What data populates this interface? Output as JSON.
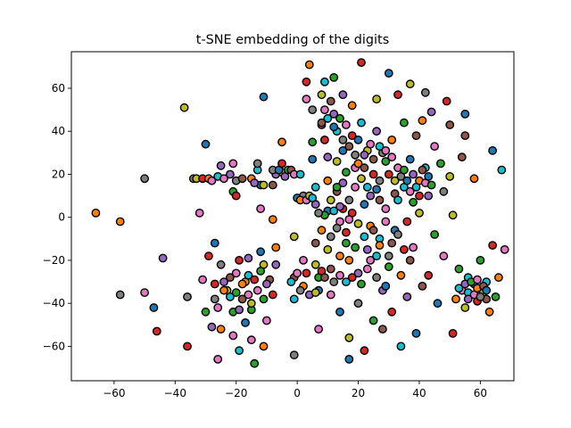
{
  "chart_data": {
    "type": "scatter",
    "title": "t-SNE embedding of the digits",
    "xlabel": "",
    "ylabel": "",
    "xlim": [
      -74,
      71
    ],
    "ylim": [
      -76,
      77
    ],
    "xticks": [
      -60,
      -40,
      -20,
      0,
      20,
      40,
      60
    ],
    "yticks": [
      -60,
      -40,
      -20,
      0,
      20,
      40,
      60
    ],
    "xtick_labels": [
      "−60",
      "−40",
      "−20",
      "0",
      "20",
      "40",
      "60"
    ],
    "ytick_labels": [
      "−60",
      "−40",
      "−20",
      "0",
      "20",
      "40",
      "60"
    ],
    "grid": false,
    "legend": "none",
    "marker_edge_color": "#000000",
    "palette": [
      "#1f77b4",
      "#ff7f0e",
      "#2ca02c",
      "#d62728",
      "#9467bd",
      "#8c564b",
      "#e377c2",
      "#7f7f7f",
      "#bcbd22",
      "#17becf"
    ],
    "points": [
      [
        -66,
        2,
        1
      ],
      [
        -58,
        -2,
        1
      ],
      [
        -58,
        -36,
        7
      ],
      [
        -50,
        18,
        7
      ],
      [
        -50,
        -35,
        6
      ],
      [
        -47,
        -42,
        0
      ],
      [
        -46,
        -53,
        3
      ],
      [
        -44,
        -19,
        4
      ],
      [
        -37,
        51,
        8
      ],
      [
        -36,
        -60,
        3
      ],
      [
        -36,
        -37,
        7
      ],
      [
        -34,
        18,
        7
      ],
      [
        -33,
        18,
        8
      ],
      [
        -32,
        2,
        6
      ],
      [
        -31,
        -29,
        6
      ],
      [
        -30,
        -44,
        2
      ],
      [
        -29,
        -18,
        3
      ],
      [
        -28,
        -51,
        4
      ],
      [
        -30,
        34,
        0
      ],
      [
        -31,
        18,
        3
      ],
      [
        -29,
        18,
        1
      ],
      [
        -28,
        17,
        6
      ],
      [
        -27,
        -12,
        0
      ],
      [
        -27,
        -31,
        3
      ],
      [
        -26,
        -42,
        6
      ],
      [
        -26,
        -66,
        6
      ],
      [
        -25,
        -52,
        1
      ],
      [
        -25,
        -22,
        7
      ],
      [
        -24,
        -30,
        4
      ],
      [
        -23,
        -34,
        8
      ],
      [
        -22,
        -37,
        9
      ],
      [
        -21,
        -44,
        2
      ],
      [
        -22,
        20,
        4
      ],
      [
        -21,
        25,
        6
      ],
      [
        -20,
        17,
        7
      ],
      [
        -21,
        12,
        2
      ],
      [
        -20,
        10,
        3
      ],
      [
        -20,
        -26,
        6
      ],
      [
        -19,
        -20,
        3
      ],
      [
        -19,
        -62,
        9
      ],
      [
        -18,
        -38,
        5
      ],
      [
        -17,
        -30,
        1
      ],
      [
        -17,
        -49,
        0
      ],
      [
        -16,
        -19,
        4
      ],
      [
        -16,
        -36,
        6
      ],
      [
        -15,
        -43,
        2
      ],
      [
        -15,
        -57,
        6
      ],
      [
        -14,
        -29,
        3
      ],
      [
        -14,
        -68,
        2
      ],
      [
        -13,
        22,
        9
      ],
      [
        -13,
        25,
        7
      ],
      [
        -12,
        15,
        0
      ],
      [
        -12,
        4,
        6
      ],
      [
        -12,
        -16,
        0
      ],
      [
        -11,
        -22,
        8
      ],
      [
        -11,
        -38,
        2
      ],
      [
        -11,
        -60,
        1
      ],
      [
        -10,
        -48,
        6
      ],
      [
        -9,
        -29,
        5
      ],
      [
        -8,
        -1,
        1
      ],
      [
        -8,
        15,
        5
      ],
      [
        -7,
        20,
        4
      ],
      [
        -7,
        -14,
        1
      ],
      [
        -7,
        -22,
        4
      ],
      [
        -11,
        56,
        0
      ],
      [
        -5,
        35,
        1
      ],
      [
        -5,
        21,
        8
      ],
      [
        -4,
        19,
        4
      ],
      [
        -3,
        22,
        2
      ],
      [
        -2,
        22,
        5
      ],
      [
        -1,
        20,
        6
      ],
      [
        -1,
        -9,
        8
      ],
      [
        -1,
        -28,
        5
      ],
      [
        -1,
        -38,
        9
      ],
      [
        -1,
        -64,
        7
      ],
      [
        0,
        9,
        0
      ],
      [
        1,
        20,
        9
      ],
      [
        2,
        10,
        7
      ],
      [
        2,
        -20,
        6
      ],
      [
        2,
        -32,
        1
      ],
      [
        3,
        -26,
        3
      ],
      [
        3,
        55,
        6
      ],
      [
        3,
        63,
        3
      ],
      [
        4,
        71,
        1
      ],
      [
        5,
        50,
        7
      ],
      [
        5,
        35,
        2
      ],
      [
        5,
        27,
        0
      ],
      [
        6,
        14,
        9
      ],
      [
        6,
        6,
        4
      ],
      [
        6,
        -22,
        8
      ],
      [
        7,
        -28,
        2
      ],
      [
        7,
        -34,
        0
      ],
      [
        7,
        -52,
        6
      ],
      [
        8,
        57,
        8
      ],
      [
        8,
        43,
        5
      ],
      [
        9,
        63,
        9
      ],
      [
        9,
        36,
        3
      ],
      [
        10,
        28,
        4
      ],
      [
        10,
        17,
        1
      ],
      [
        10,
        3,
        0
      ],
      [
        11,
        -9,
        7
      ],
      [
        11,
        -24,
        5
      ],
      [
        11,
        -36,
        6
      ],
      [
        12,
        65,
        2
      ],
      [
        12,
        48,
        4
      ],
      [
        13,
        40,
        9
      ],
      [
        13,
        26,
        8
      ],
      [
        13,
        12,
        5
      ],
      [
        14,
        -2,
        6
      ],
      [
        14,
        -18,
        1
      ],
      [
        14,
        -44,
        0
      ],
      [
        15,
        57,
        4
      ],
      [
        15,
        31,
        0
      ],
      [
        16,
        21,
        2
      ],
      [
        16,
        -7,
        3
      ],
      [
        16,
        -30,
        9
      ],
      [
        17,
        -56,
        8
      ],
      [
        17,
        -66,
        0
      ],
      [
        18,
        52,
        1
      ],
      [
        18,
        38,
        3
      ],
      [
        19,
        14,
        6
      ],
      [
        19,
        -14,
        2
      ],
      [
        20,
        -26,
        4
      ],
      [
        20,
        -40,
        7
      ],
      [
        21,
        72,
        3
      ],
      [
        21,
        44,
        9
      ],
      [
        22,
        23,
        5
      ],
      [
        22,
        6,
        0
      ],
      [
        22,
        -62,
        3
      ],
      [
        23,
        31,
        8
      ],
      [
        24,
        -4,
        1
      ],
      [
        24,
        -20,
        6
      ],
      [
        25,
        -48,
        2
      ],
      [
        26,
        55,
        8
      ],
      [
        26,
        40,
        4
      ],
      [
        27,
        17,
        7
      ],
      [
        27,
        -10,
        9
      ],
      [
        28,
        -34,
        4
      ],
      [
        28,
        -52,
        5
      ],
      [
        29,
        26,
        2
      ],
      [
        29,
        4,
        6
      ],
      [
        30,
        67,
        0
      ],
      [
        30,
        -18,
        7
      ],
      [
        31,
        36,
        1
      ],
      [
        31,
        -44,
        3
      ],
      [
        32,
        11,
        5
      ],
      [
        32,
        -6,
        0
      ],
      [
        33,
        57,
        3
      ],
      [
        33,
        23,
        6
      ],
      [
        34,
        -27,
        1
      ],
      [
        34,
        -60,
        9
      ],
      [
        35,
        44,
        2
      ],
      [
        35,
        14,
        9
      ],
      [
        36,
        -2,
        3
      ],
      [
        36,
        -37,
        4
      ],
      [
        37,
        62,
        8
      ],
      [
        37,
        27,
        0
      ],
      [
        38,
        7,
        2
      ],
      [
        38,
        -14,
        6
      ],
      [
        39,
        38,
        5
      ],
      [
        39,
        -54,
        0
      ],
      [
        40,
        17,
        1
      ],
      [
        40,
        2,
        8
      ],
      [
        41,
        -32,
        5
      ],
      [
        41,
        45,
        1
      ],
      [
        42,
        58,
        7
      ],
      [
        42,
        23,
        9
      ],
      [
        43,
        10,
        4
      ],
      [
        43,
        -27,
        3
      ],
      [
        44,
        49,
        4
      ],
      [
        45,
        33,
        6
      ],
      [
        45,
        -8,
        2
      ],
      [
        46,
        -40,
        0
      ],
      [
        47,
        25,
        2
      ],
      [
        48,
        12,
        7
      ],
      [
        48,
        -18,
        6
      ],
      [
        49,
        54,
        3
      ],
      [
        50,
        43,
        5
      ],
      [
        50,
        19,
        8
      ],
      [
        51,
        1,
        8
      ],
      [
        51,
        -54,
        3
      ],
      [
        52,
        -38,
        1
      ],
      [
        53,
        -24,
        2
      ],
      [
        54,
        28,
        5
      ],
      [
        55,
        48,
        0
      ],
      [
        55,
        38,
        5
      ],
      [
        55,
        -42,
        8
      ],
      [
        56,
        -28,
        9
      ],
      [
        57,
        -36,
        7
      ],
      [
        58,
        -31,
        0
      ],
      [
        58,
        18,
        1
      ],
      [
        59,
        -39,
        3
      ],
      [
        60,
        -33,
        4
      ],
      [
        60,
        -20,
        2
      ],
      [
        61,
        -35,
        8
      ],
      [
        62,
        -30,
        9
      ],
      [
        62,
        -38,
        5
      ],
      [
        63,
        -44,
        1
      ],
      [
        64,
        -13,
        3
      ],
      [
        64,
        31,
        0
      ],
      [
        65,
        -37,
        2
      ],
      [
        66,
        -28,
        1
      ],
      [
        67,
        22,
        9
      ],
      [
        68,
        -15,
        6
      ],
      [
        -25,
        24,
        4
      ],
      [
        -26,
        19,
        9
      ],
      [
        -24,
        18,
        6
      ],
      [
        -18,
        18,
        5
      ],
      [
        -15,
        18,
        1
      ],
      [
        -14,
        16,
        4
      ],
      [
        -11,
        15,
        8
      ],
      [
        -8,
        22,
        7
      ],
      [
        -6,
        22,
        0
      ],
      [
        -5,
        25,
        3
      ],
      [
        1,
        8,
        1
      ],
      [
        3,
        8,
        6
      ],
      [
        4,
        10,
        8
      ],
      [
        5,
        9,
        9
      ],
      [
        -2,
        -30,
        9
      ],
      [
        0,
        -26,
        6
      ],
      [
        1,
        -34,
        7
      ],
      [
        4,
        -36,
        4
      ],
      [
        6,
        -35,
        8
      ],
      [
        8,
        -25,
        3
      ],
      [
        9,
        -28,
        5
      ],
      [
        12,
        -30,
        7
      ],
      [
        14,
        -27,
        6
      ],
      [
        17,
        -20,
        1
      ],
      [
        18,
        -28,
        3
      ],
      [
        21,
        -31,
        2
      ],
      [
        23,
        -24,
        6
      ],
      [
        26,
        -28,
        7
      ],
      [
        29,
        -32,
        0
      ],
      [
        13,
        14,
        2
      ],
      [
        15,
        16,
        4
      ],
      [
        17,
        8,
        7
      ],
      [
        18,
        2,
        3
      ],
      [
        19,
        23,
        6
      ],
      [
        20,
        25,
        1
      ],
      [
        21,
        18,
        8
      ],
      [
        23,
        14,
        9
      ],
      [
        24,
        10,
        4
      ],
      [
        25,
        20,
        3
      ],
      [
        26,
        13,
        0
      ],
      [
        27,
        8,
        5
      ],
      [
        28,
        30,
        7
      ],
      [
        30,
        20,
        3
      ],
      [
        31,
        28,
        6
      ],
      [
        32,
        17,
        8
      ],
      [
        33,
        8,
        9
      ],
      [
        34,
        19,
        7
      ],
      [
        35,
        22,
        2
      ],
      [
        36,
        17,
        0
      ],
      [
        37,
        12,
        6
      ],
      [
        38,
        20,
        4
      ],
      [
        39,
        14,
        9
      ],
      [
        40,
        10,
        3
      ],
      [
        41,
        22,
        5
      ],
      [
        42,
        16,
        6
      ],
      [
        43,
        19,
        0
      ],
      [
        44,
        15,
        2
      ],
      [
        8,
        44,
        5
      ],
      [
        9,
        50,
        6
      ],
      [
        10,
        46,
        9
      ],
      [
        11,
        54,
        5
      ],
      [
        12,
        42,
        0
      ],
      [
        14,
        46,
        2
      ],
      [
        15,
        36,
        7
      ],
      [
        16,
        43,
        6
      ],
      [
        17,
        33,
        5
      ],
      [
        19,
        29,
        7
      ],
      [
        20,
        36,
        0
      ],
      [
        22,
        29,
        4
      ],
      [
        24,
        34,
        6
      ],
      [
        25,
        27,
        5
      ],
      [
        27,
        33,
        9
      ],
      [
        29,
        31,
        6
      ],
      [
        54,
        -34,
        6
      ],
      [
        55,
        -31,
        4
      ],
      [
        56,
        -35,
        9
      ],
      [
        57,
        -30,
        2
      ],
      [
        58,
        -36,
        6
      ],
      [
        59,
        -33,
        1
      ],
      [
        60,
        -37,
        7
      ],
      [
        61,
        -32,
        5
      ],
      [
        56,
        -38,
        4
      ],
      [
        53,
        -33,
        9
      ],
      [
        62,
        -34,
        0
      ],
      [
        59,
        -29,
        6
      ],
      [
        -10,
        -31,
        4
      ],
      [
        -12,
        -25,
        2
      ],
      [
        -13,
        -34,
        6
      ],
      [
        -15,
        -40,
        8
      ],
      [
        -8,
        -36,
        3
      ],
      [
        -16,
        -27,
        9
      ],
      [
        -18,
        -31,
        1
      ],
      [
        -20,
        -35,
        2
      ],
      [
        -22,
        -28,
        5
      ],
      [
        -24,
        -34,
        1
      ],
      [
        -19,
        -43,
        4
      ],
      [
        -21,
        -55,
        6
      ],
      [
        -27,
        -38,
        7
      ],
      [
        22,
        -9,
        9
      ],
      [
        25,
        -6,
        5
      ],
      [
        27,
        -13,
        1
      ],
      [
        29,
        -2,
        6
      ],
      [
        31,
        -12,
        5
      ],
      [
        33,
        -8,
        7
      ],
      [
        35,
        -15,
        3
      ],
      [
        37,
        -20,
        5
      ],
      [
        30,
        -23,
        2
      ],
      [
        26,
        -18,
        9
      ],
      [
        23,
        -15,
        4
      ],
      [
        20,
        -3,
        8
      ],
      [
        16,
        -12,
        2
      ],
      [
        13,
        -5,
        7
      ],
      [
        10,
        -15,
        8
      ],
      [
        6,
        -12,
        5
      ],
      [
        8,
        -6,
        1
      ],
      [
        12,
        3,
        9
      ],
      [
        15,
        4,
        3
      ],
      [
        17,
        -1,
        6
      ],
      [
        14,
        5,
        4
      ],
      [
        11,
        8,
        8
      ],
      [
        9,
        1,
        2
      ],
      [
        7,
        2,
        7
      ]
    ]
  }
}
